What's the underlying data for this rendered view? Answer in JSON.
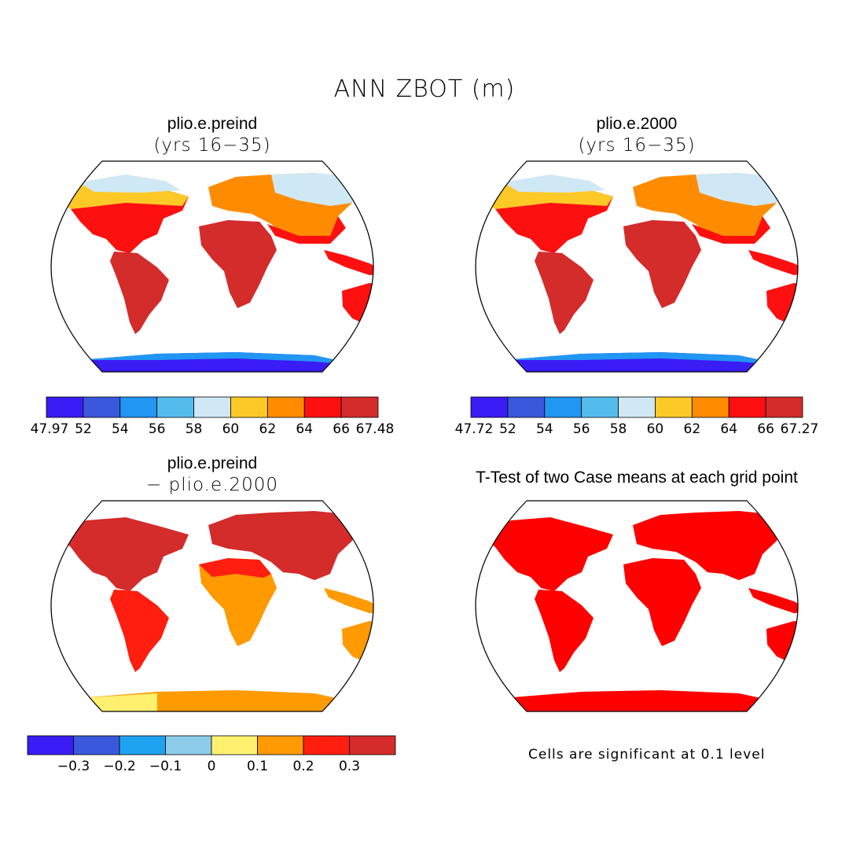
{
  "main_title": "ANN ZBOT (m)",
  "panels": [
    {
      "title": "plio.e.preind",
      "subtitle": "(yrs 16−35)"
    },
    {
      "title": "plio.e.2000",
      "subtitle": "(yrs 16−35)"
    },
    {
      "title": "plio.e.preind",
      "subtitle": "− plio.e.2000"
    },
    {
      "title": "T-Test of two Case means at each grid point",
      "subtitle": ""
    }
  ],
  "colorbars": [
    {
      "colors": [
        "#3a1cf5",
        "#3a58dc",
        "#2196f3",
        "#55bdee",
        "#cfe8f6",
        "#fdc927",
        "#ff8c00",
        "#ff1010",
        "#d42b2b"
      ],
      "labels": [
        "47.97",
        "52",
        "54",
        "56",
        "58",
        "60",
        "62",
        "64",
        "66",
        "67.48"
      ]
    },
    {
      "colors": [
        "#3a1cf5",
        "#3a58dc",
        "#2196f3",
        "#55bdee",
        "#cfe8f6",
        "#fdc927",
        "#ff8c00",
        "#ff1010",
        "#d42b2b"
      ],
      "labels": [
        "47.72",
        "52",
        "54",
        "56",
        "58",
        "60",
        "62",
        "64",
        "66",
        "67.27"
      ]
    },
    {
      "colors": [
        "#3a1cf5",
        "#3a58dc",
        "#1ea3f0",
        "#8ccbea",
        "#fff070",
        "#ff9a00",
        "#ff1e10",
        "#d42b2b"
      ],
      "labels": [
        "−0.3",
        "−0.2",
        "−0.1",
        "0",
        "0.1",
        "0.2",
        "0.3"
      ]
    }
  ],
  "note": "Cells are significant at 0.1 level"
}
